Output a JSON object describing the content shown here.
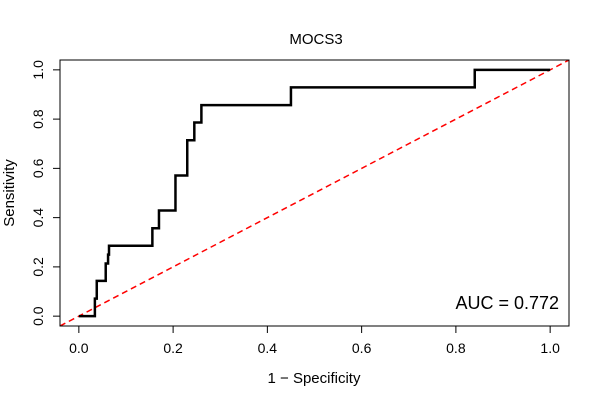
{
  "chart_data": {
    "type": "line",
    "title": "MOCS3",
    "xlabel": "1 − Specificity",
    "ylabel": "Sensitivity",
    "xlim": [
      -0.04,
      1.04
    ],
    "ylim": [
      -0.04,
      1.04
    ],
    "xticks": [
      0.0,
      0.2,
      0.4,
      0.6,
      0.8,
      1.0
    ],
    "xtick_labels": [
      "0.0",
      "0.2",
      "0.4",
      "0.6",
      "0.8",
      "1.0"
    ],
    "yticks": [
      0.0,
      0.2,
      0.4,
      0.6,
      0.8,
      1.0
    ],
    "ytick_labels": [
      "0.0",
      "0.2",
      "0.4",
      "0.6",
      "0.8",
      "1.0"
    ],
    "grid": false,
    "annotation": "AUC = 0.772",
    "series": [
      {
        "name": "ROC curve",
        "color": "#000000",
        "x": [
          0.0,
          0.034,
          0.034,
          0.038,
          0.038,
          0.057,
          0.057,
          0.062,
          0.062,
          0.064,
          0.064,
          0.156,
          0.156,
          0.17,
          0.17,
          0.205,
          0.205,
          0.23,
          0.23,
          0.245,
          0.245,
          0.26,
          0.26,
          0.45,
          0.45,
          0.84,
          0.84,
          1.0
        ],
        "y": [
          0.0,
          0.0,
          0.071,
          0.071,
          0.143,
          0.143,
          0.214,
          0.214,
          0.25,
          0.25,
          0.286,
          0.286,
          0.357,
          0.357,
          0.429,
          0.429,
          0.571,
          0.571,
          0.714,
          0.714,
          0.786,
          0.786,
          0.857,
          0.857,
          0.929,
          0.929,
          1.0,
          1.0
        ]
      },
      {
        "name": "chance line",
        "color": "#ff0000",
        "dashed": true,
        "x": [
          -0.04,
          1.04
        ],
        "y": [
          -0.04,
          1.04
        ]
      }
    ]
  }
}
